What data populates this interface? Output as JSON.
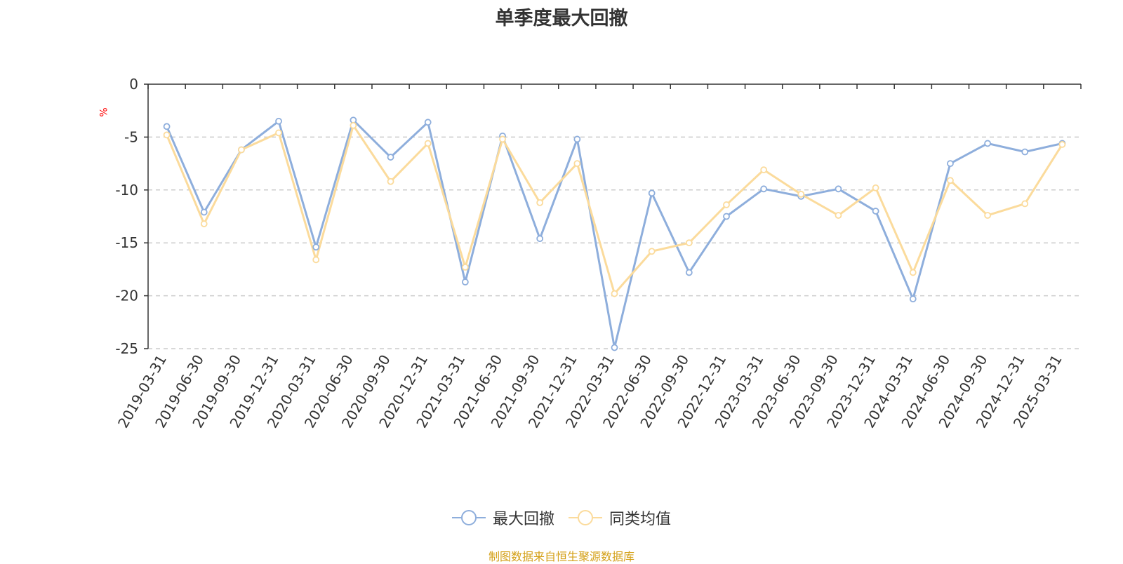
{
  "chart_data": {
    "type": "line",
    "title": "单季度最大回撤",
    "ylabel": "%",
    "source": "制图数据来自恒生聚源数据库",
    "ylim": [
      -25,
      0
    ],
    "yticks": [
      0,
      -5,
      -10,
      -15,
      -20,
      -25
    ],
    "grid": "horizontal dashed",
    "legend_position": "bottom",
    "categories": [
      "2019-03-31",
      "2019-06-30",
      "2019-09-30",
      "2019-12-31",
      "2020-03-31",
      "2020-06-30",
      "2020-09-30",
      "2020-12-31",
      "2021-03-31",
      "2021-06-30",
      "2021-09-30",
      "2021-12-31",
      "2022-03-31",
      "2022-06-30",
      "2022-09-30",
      "2022-12-31",
      "2023-03-31",
      "2023-06-30",
      "2023-09-30",
      "2023-12-31",
      "2024-03-31",
      "2024-06-30",
      "2024-09-30",
      "2024-12-31",
      "2025-03-31"
    ],
    "series": [
      {
        "name": "最大回撤",
        "color": "#8eaedc",
        "values": [
          -4.0,
          -12.1,
          -6.2,
          -3.5,
          -15.4,
          -3.4,
          -6.9,
          -3.6,
          -18.7,
          -4.9,
          -14.6,
          -5.2,
          -24.9,
          -10.3,
          -17.8,
          -12.5,
          -9.9,
          -10.6,
          -9.9,
          -12.0,
          -20.3,
          -7.5,
          -5.6,
          -6.4,
          -5.6
        ]
      },
      {
        "name": "同类均值",
        "color": "#fbdb9c",
        "values": [
          -4.8,
          -13.2,
          -6.2,
          -4.6,
          -16.6,
          -3.9,
          -9.2,
          -5.6,
          -17.3,
          -5.2,
          -11.2,
          -7.5,
          -19.8,
          -15.8,
          -15.0,
          -11.4,
          -8.1,
          -10.4,
          -12.4,
          -9.8,
          -17.8,
          -9.1,
          -12.4,
          -11.3,
          -5.7
        ]
      }
    ]
  }
}
